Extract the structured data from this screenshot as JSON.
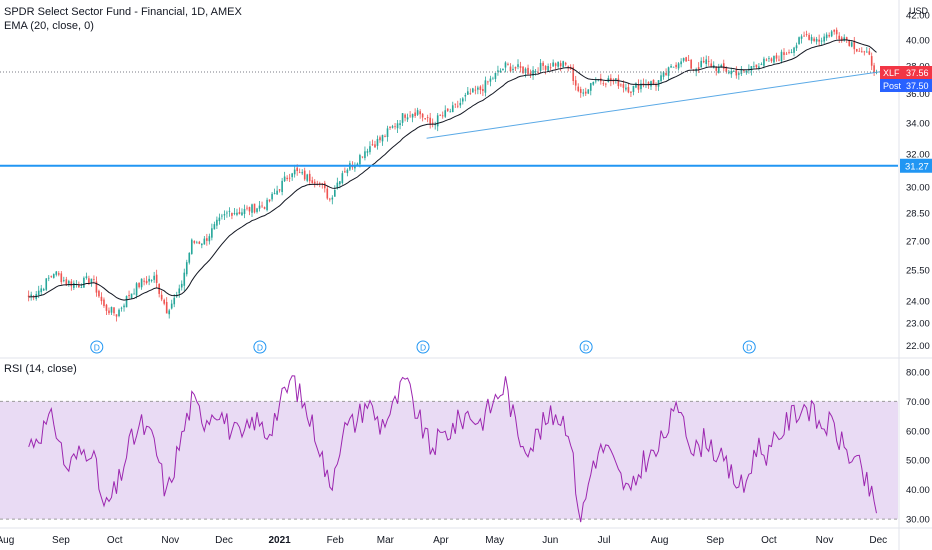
{
  "header": {
    "title": "SPDR Select Sector Fund - Financial, 1D, AMEX",
    "indicator": "EMA (20, close, 0)",
    "currency": "USD"
  },
  "rsi_panel": {
    "label": "RSI (14, close)"
  },
  "price_badges": {
    "last": {
      "symbol": "XLF",
      "value": "37.56",
      "color": "#f23645"
    },
    "post": {
      "label": "Post",
      "value": "37.50",
      "color": "#2962ff"
    },
    "hline": {
      "value": "31.27",
      "color": "#2196f3"
    }
  },
  "dividend_marker": "D",
  "colors": {
    "up": "#26a69a",
    "down": "#ef5350",
    "ema": "#131722",
    "trendline": "#5aa9e6",
    "hline": "#2196f3",
    "rsi": "#9c27b0",
    "rsi_band": "#e1cff0"
  },
  "chart_data": [
    {
      "type": "candlestick",
      "x_axis": {
        "labels": [
          "Aug",
          "Sep",
          "Oct",
          "Nov",
          "Dec",
          "2021",
          "Feb",
          "Mar",
          "Apr",
          "May",
          "Jun",
          "Jul",
          "Aug",
          "Sep",
          "Oct",
          "Nov",
          "Dec"
        ]
      },
      "y_axis": {
        "scale": "log",
        "ticks": [
          22.0,
          23.0,
          24.0,
          25.5,
          27.0,
          28.5,
          30.0,
          32.0,
          34.0,
          36.0,
          38.0,
          40.0,
          42.0
        ],
        "range": [
          21.6,
          42.4
        ]
      },
      "closes": [
        {
          "date": "2020-08-14",
          "close": 24.2
        },
        {
          "date": "2020-08-21",
          "close": 24.6
        },
        {
          "date": "2020-08-28",
          "close": 25.4
        },
        {
          "date": "2020-09-04",
          "close": 24.9
        },
        {
          "date": "2020-09-11",
          "close": 24.8
        },
        {
          "date": "2020-09-18",
          "close": 25.1
        },
        {
          "date": "2020-09-25",
          "close": 23.7
        },
        {
          "date": "2020-10-02",
          "close": 23.4
        },
        {
          "date": "2020-10-09",
          "close": 24.3
        },
        {
          "date": "2020-10-16",
          "close": 24.9
        },
        {
          "date": "2020-10-23",
          "close": 25.1
        },
        {
          "date": "2020-10-30",
          "close": 23.6
        },
        {
          "date": "2020-11-06",
          "close": 24.4
        },
        {
          "date": "2020-11-13",
          "close": 26.9
        },
        {
          "date": "2020-11-20",
          "close": 27.0
        },
        {
          "date": "2020-11-27",
          "close": 27.9
        },
        {
          "date": "2020-12-04",
          "close": 28.6
        },
        {
          "date": "2020-12-11",
          "close": 28.6
        },
        {
          "date": "2020-12-18",
          "close": 28.8
        },
        {
          "date": "2020-12-25",
          "close": 29.0
        },
        {
          "date": "2021-01-08",
          "close": 31.0
        },
        {
          "date": "2021-01-15",
          "close": 30.6
        },
        {
          "date": "2021-01-22",
          "close": 30.4
        },
        {
          "date": "2021-01-29",
          "close": 29.3
        },
        {
          "date": "2021-02-05",
          "close": 30.9
        },
        {
          "date": "2021-02-12",
          "close": 31.5
        },
        {
          "date": "2021-02-19",
          "close": 32.4
        },
        {
          "date": "2021-02-26",
          "close": 32.9
        },
        {
          "date": "2021-03-05",
          "close": 33.7
        },
        {
          "date": "2021-03-12",
          "close": 34.6
        },
        {
          "date": "2021-03-19",
          "close": 34.8
        },
        {
          "date": "2021-03-26",
          "close": 33.9
        },
        {
          "date": "2021-04-02",
          "close": 34.5
        },
        {
          "date": "2021-04-09",
          "close": 35.0
        },
        {
          "date": "2021-04-16",
          "close": 35.9
        },
        {
          "date": "2021-04-23",
          "close": 36.3
        },
        {
          "date": "2021-05-07",
          "close": 38.0
        },
        {
          "date": "2021-05-14",
          "close": 37.8
        },
        {
          "date": "2021-05-21",
          "close": 37.6
        },
        {
          "date": "2021-05-28",
          "close": 38.0
        },
        {
          "date": "2021-06-04",
          "close": 38.2
        },
        {
          "date": "2021-06-11",
          "close": 38.0
        },
        {
          "date": "2021-06-18",
          "close": 35.8
        },
        {
          "date": "2021-06-25",
          "close": 37.0
        },
        {
          "date": "2021-07-02",
          "close": 37.0
        },
        {
          "date": "2021-07-09",
          "close": 36.8
        },
        {
          "date": "2021-07-16",
          "close": 36.3
        },
        {
          "date": "2021-07-23",
          "close": 36.8
        },
        {
          "date": "2021-07-30",
          "close": 36.7
        },
        {
          "date": "2021-08-06",
          "close": 37.6
        },
        {
          "date": "2021-08-13",
          "close": 38.6
        },
        {
          "date": "2021-08-20",
          "close": 37.8
        },
        {
          "date": "2021-08-27",
          "close": 38.3
        },
        {
          "date": "2021-09-03",
          "close": 37.8
        },
        {
          "date": "2021-09-10",
          "close": 37.6
        },
        {
          "date": "2021-09-17",
          "close": 37.5
        },
        {
          "date": "2021-09-24",
          "close": 38.2
        },
        {
          "date": "2021-10-01",
          "close": 38.3
        },
        {
          "date": "2021-10-08",
          "close": 38.8
        },
        {
          "date": "2021-10-15",
          "close": 39.5
        },
        {
          "date": "2021-10-22",
          "close": 40.4
        },
        {
          "date": "2021-10-29",
          "close": 40.0
        },
        {
          "date": "2021-11-05",
          "close": 40.6
        },
        {
          "date": "2021-11-12",
          "close": 40.2
        },
        {
          "date": "2021-11-19",
          "close": 39.4
        },
        {
          "date": "2021-11-26",
          "close": 38.6
        },
        {
          "date": "2021-11-30",
          "close": 37.56
        }
      ],
      "ema": {
        "name": "EMA (20, close, 0)"
      },
      "horizontal_line": 31.27,
      "trendlines": [
        {
          "from": {
            "date": "2021-03-24",
            "price": 33.0
          },
          "to": {
            "date": "2021-12-03",
            "price": 37.6
          }
        }
      ],
      "dividend_dates": [
        "2020-09-21",
        "2020-12-21",
        "2021-03-22",
        "2021-06-21",
        "2021-09-20"
      ],
      "last_price": 37.56,
      "post_price": 37.5
    },
    {
      "type": "line",
      "name": "RSI (14, close)",
      "y_axis": {
        "ticks": [
          30.0,
          40.0,
          50.0,
          60.0,
          70.0,
          80.0
        ],
        "range": [
          28,
          82
        ]
      },
      "band": [
        30,
        70
      ],
      "values": [
        {
          "date": "2020-08-14",
          "value": 55
        },
        {
          "date": "2020-08-21",
          "value": 60
        },
        {
          "date": "2020-08-28",
          "value": 64
        },
        {
          "date": "2020-09-04",
          "value": 47
        },
        {
          "date": "2020-09-11",
          "value": 52
        },
        {
          "date": "2020-09-18",
          "value": 55
        },
        {
          "date": "2020-09-25",
          "value": 33
        },
        {
          "date": "2020-10-02",
          "value": 40
        },
        {
          "date": "2020-10-09",
          "value": 55
        },
        {
          "date": "2020-10-16",
          "value": 62
        },
        {
          "date": "2020-10-23",
          "value": 56
        },
        {
          "date": "2020-10-30",
          "value": 38
        },
        {
          "date": "2020-11-06",
          "value": 55
        },
        {
          "date": "2020-11-13",
          "value": 70
        },
        {
          "date": "2020-11-20",
          "value": 64
        },
        {
          "date": "2020-11-27",
          "value": 68
        },
        {
          "date": "2020-12-04",
          "value": 61
        },
        {
          "date": "2020-12-11",
          "value": 57
        },
        {
          "date": "2020-12-18",
          "value": 64
        },
        {
          "date": "2020-12-25",
          "value": 59
        },
        {
          "date": "2021-01-08",
          "value": 78
        },
        {
          "date": "2021-01-15",
          "value": 68
        },
        {
          "date": "2021-01-22",
          "value": 58
        },
        {
          "date": "2021-01-29",
          "value": 40
        },
        {
          "date": "2021-02-05",
          "value": 60
        },
        {
          "date": "2021-02-12",
          "value": 63
        },
        {
          "date": "2021-02-19",
          "value": 70
        },
        {
          "date": "2021-02-26",
          "value": 62
        },
        {
          "date": "2021-03-05",
          "value": 67
        },
        {
          "date": "2021-03-12",
          "value": 77
        },
        {
          "date": "2021-03-19",
          "value": 65
        },
        {
          "date": "2021-03-26",
          "value": 54
        },
        {
          "date": "2021-04-02",
          "value": 58
        },
        {
          "date": "2021-04-09",
          "value": 62
        },
        {
          "date": "2021-04-16",
          "value": 66
        },
        {
          "date": "2021-04-23",
          "value": 63
        },
        {
          "date": "2021-05-07",
          "value": 76
        },
        {
          "date": "2021-05-14",
          "value": 58
        },
        {
          "date": "2021-05-21",
          "value": 55
        },
        {
          "date": "2021-05-28",
          "value": 62
        },
        {
          "date": "2021-06-04",
          "value": 66
        },
        {
          "date": "2021-06-11",
          "value": 62
        },
        {
          "date": "2021-06-18",
          "value": 29
        },
        {
          "date": "2021-06-25",
          "value": 50
        },
        {
          "date": "2021-07-02",
          "value": 55
        },
        {
          "date": "2021-07-09",
          "value": 45
        },
        {
          "date": "2021-07-16",
          "value": 38
        },
        {
          "date": "2021-07-23",
          "value": 50
        },
        {
          "date": "2021-07-30",
          "value": 52
        },
        {
          "date": "2021-08-06",
          "value": 62
        },
        {
          "date": "2021-08-13",
          "value": 69
        },
        {
          "date": "2021-08-20",
          "value": 52
        },
        {
          "date": "2021-08-27",
          "value": 58
        },
        {
          "date": "2021-09-03",
          "value": 51
        },
        {
          "date": "2021-09-10",
          "value": 45
        },
        {
          "date": "2021-09-17",
          "value": 40
        },
        {
          "date": "2021-09-24",
          "value": 55
        },
        {
          "date": "2021-10-01",
          "value": 52
        },
        {
          "date": "2021-10-08",
          "value": 60
        },
        {
          "date": "2021-10-15",
          "value": 66
        },
        {
          "date": "2021-10-22",
          "value": 69
        },
        {
          "date": "2021-10-29",
          "value": 62
        },
        {
          "date": "2021-11-05",
          "value": 62
        },
        {
          "date": "2021-11-12",
          "value": 54
        },
        {
          "date": "2021-11-19",
          "value": 49
        },
        {
          "date": "2021-11-26",
          "value": 40
        },
        {
          "date": "2021-11-30",
          "value": 32
        }
      ]
    }
  ]
}
